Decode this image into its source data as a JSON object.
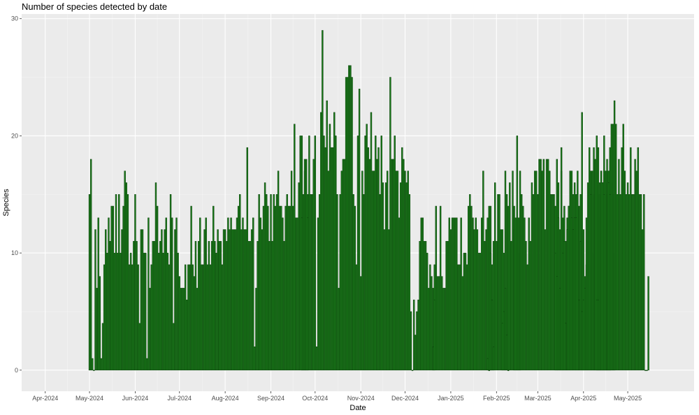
{
  "chart_data": {
    "type": "bar",
    "title": "Number of species detected by date",
    "xlabel": "Date",
    "ylabel": "Species",
    "x_start": "2024-03-16",
    "x_end": "2025-06-15",
    "ylim": [
      -1.8,
      30.4
    ],
    "y_ticks": [
      0,
      10,
      20,
      30
    ],
    "x_ticks": [
      {
        "date": "2024-04-01",
        "label": "Apr-2024"
      },
      {
        "date": "2024-05-01",
        "label": "May-2024"
      },
      {
        "date": "2024-06-01",
        "label": "Jun-2024"
      },
      {
        "date": "2024-07-01",
        "label": "Jul-2024"
      },
      {
        "date": "2024-08-01",
        "label": "Aug-2024"
      },
      {
        "date": "2024-09-01",
        "label": "Sep-2024"
      },
      {
        "date": "2024-10-01",
        "label": "Oct-2024"
      },
      {
        "date": "2024-11-01",
        "label": "Nov-2024"
      },
      {
        "date": "2024-12-01",
        "label": "Dec-2024"
      },
      {
        "date": "2025-01-01",
        "label": "Jan-2025"
      },
      {
        "date": "2025-02-01",
        "label": "Feb-2025"
      },
      {
        "date": "2025-03-01",
        "label": "Mar-2025"
      },
      {
        "date": "2025-04-01",
        "label": "Apr-2025"
      },
      {
        "date": "2025-05-01",
        "label": "May-2025"
      }
    ],
    "grid": true,
    "colors": {
      "bar_fill": "#1a7a1a",
      "bar_stroke": "#0b3d0b",
      "panel": "#ebebeb",
      "grid": "#ffffff"
    },
    "series": [
      {
        "start": "2024-05-01",
        "values": [
          15,
          18,
          1,
          0,
          12,
          7,
          13,
          8,
          1,
          4,
          9,
          12,
          10,
          13,
          11,
          14,
          14,
          10,
          15,
          10,
          15,
          10,
          12,
          14,
          17,
          16,
          15,
          9,
          10,
          9,
          11,
          15,
          11,
          9,
          4,
          12,
          12,
          10,
          10,
          1,
          13,
          7,
          9,
          11,
          11,
          16,
          14,
          10,
          11,
          12,
          10,
          12,
          13,
          10,
          9,
          15,
          13,
          4,
          12,
          13,
          10,
          8,
          7,
          7,
          7,
          9,
          6,
          9,
          9,
          14,
          9,
          8,
          11,
          7,
          11,
          13,
          9,
          9,
          12,
          13,
          9,
          11,
          9,
          11,
          14,
          11,
          10,
          12,
          11,
          11,
          9,
          12,
          12,
          11,
          13,
          12,
          13,
          12,
          12,
          12,
          13,
          14,
          15,
          12,
          13,
          12,
          12,
          19,
          11,
          11,
          12,
          13,
          2,
          7,
          11,
          15,
          13,
          12,
          14,
          16,
          15,
          14,
          11,
          15,
          11,
          15,
          14,
          15,
          17,
          14,
          14,
          13,
          11,
          14,
          15,
          14,
          14,
          17,
          14,
          21,
          13,
          13,
          16,
          20,
          20,
          15,
          17,
          15,
          15
        ]
      },
      {
        "start": "2024-09-22",
        "values": [
          13,
          15,
          18,
          18,
          13,
          20,
          15,
          15,
          18,
          20,
          2,
          13,
          15,
          22,
          29,
          20,
          19,
          23,
          17,
          21,
          19,
          19,
          22,
          20,
          15,
          7,
          15,
          17,
          18,
          18,
          25,
          25,
          26,
          26,
          25,
          15,
          14,
          9,
          20,
          24,
          8,
          17,
          15,
          20,
          21,
          19,
          18,
          22,
          17,
          17,
          20,
          18,
          19,
          15,
          20,
          16,
          12,
          16,
          17,
          12,
          25,
          18,
          18,
          20,
          17,
          17,
          13,
          16,
          19,
          18,
          17,
          16,
          17,
          15
        ]
      },
      {
        "start": "2024-12-05",
        "values": [
          5,
          0,
          6,
          3,
          5,
          6,
          11,
          13,
          13,
          11,
          11,
          10,
          7,
          9,
          8,
          7,
          9
        ]
      },
      {
        "start": "2024-12-20",
        "values": [
          2,
          6,
          14,
          8,
          8,
          14,
          8,
          7,
          7,
          11,
          11,
          13,
          12,
          13,
          13,
          13,
          13,
          9,
          9,
          13,
          8,
          10,
          10,
          9,
          14,
          15,
          14,
          13,
          12,
          13,
          12,
          10,
          10,
          13,
          17,
          11,
          12,
          13,
          14,
          14,
          9,
          11,
          16,
          11,
          15,
          15,
          12,
          12,
          10,
          17,
          15,
          14,
          16,
          11,
          17,
          12,
          8,
          13,
          10,
          13
        ]
      },
      {
        "start": "2025-01-26",
        "values": [
          1,
          0,
          10,
          6,
          2
        ]
      },
      {
        "start": "2025-02-05",
        "values": [
          4,
          5,
          7,
          3,
          0
        ]
      },
      {
        "start": "2025-02-13",
        "values": [
          14,
          13,
          20,
          13,
          17,
          15,
          14,
          13,
          11,
          9,
          13,
          11,
          16,
          15,
          17,
          17,
          15,
          18,
          18,
          17,
          18,
          12,
          18,
          18,
          17,
          15,
          15,
          15,
          14,
          18,
          16,
          12,
          17,
          13,
          14,
          11,
          13,
          14,
          17,
          17,
          15,
          16,
          15,
          17,
          14,
          15,
          22,
          12,
          8,
          9,
          11,
          9,
          17,
          10,
          15,
          12,
          16,
          15,
          15,
          14,
          16,
          17,
          16,
          15,
          17,
          16
        ]
      },
      {
        "start": "2025-03-13",
        "values": [
          10,
          8,
          13,
          7,
          19,
          10,
          11,
          4,
          12,
          14,
          17,
          13,
          12,
          13,
          13,
          15,
          6,
          11
        ]
      },
      {
        "start": "2025-03-31",
        "values": [
          5,
          6,
          7,
          13,
          16,
          19,
          15,
          17,
          19,
          18,
          20,
          19,
          13,
          17,
          14,
          20,
          12,
          15,
          17,
          19,
          16,
          15,
          10
        ]
      },
      {
        "start": "2025-04-10",
        "values": [
          6,
          6,
          16,
          17,
          16,
          15,
          17,
          18,
          16,
          15,
          21,
          21,
          23,
          21,
          15,
          18,
          15,
          19,
          21,
          17,
          15,
          16,
          15,
          19,
          15,
          15,
          18,
          17,
          19,
          15,
          15,
          12,
          15,
          0,
          0,
          8
        ]
      }
    ]
  }
}
